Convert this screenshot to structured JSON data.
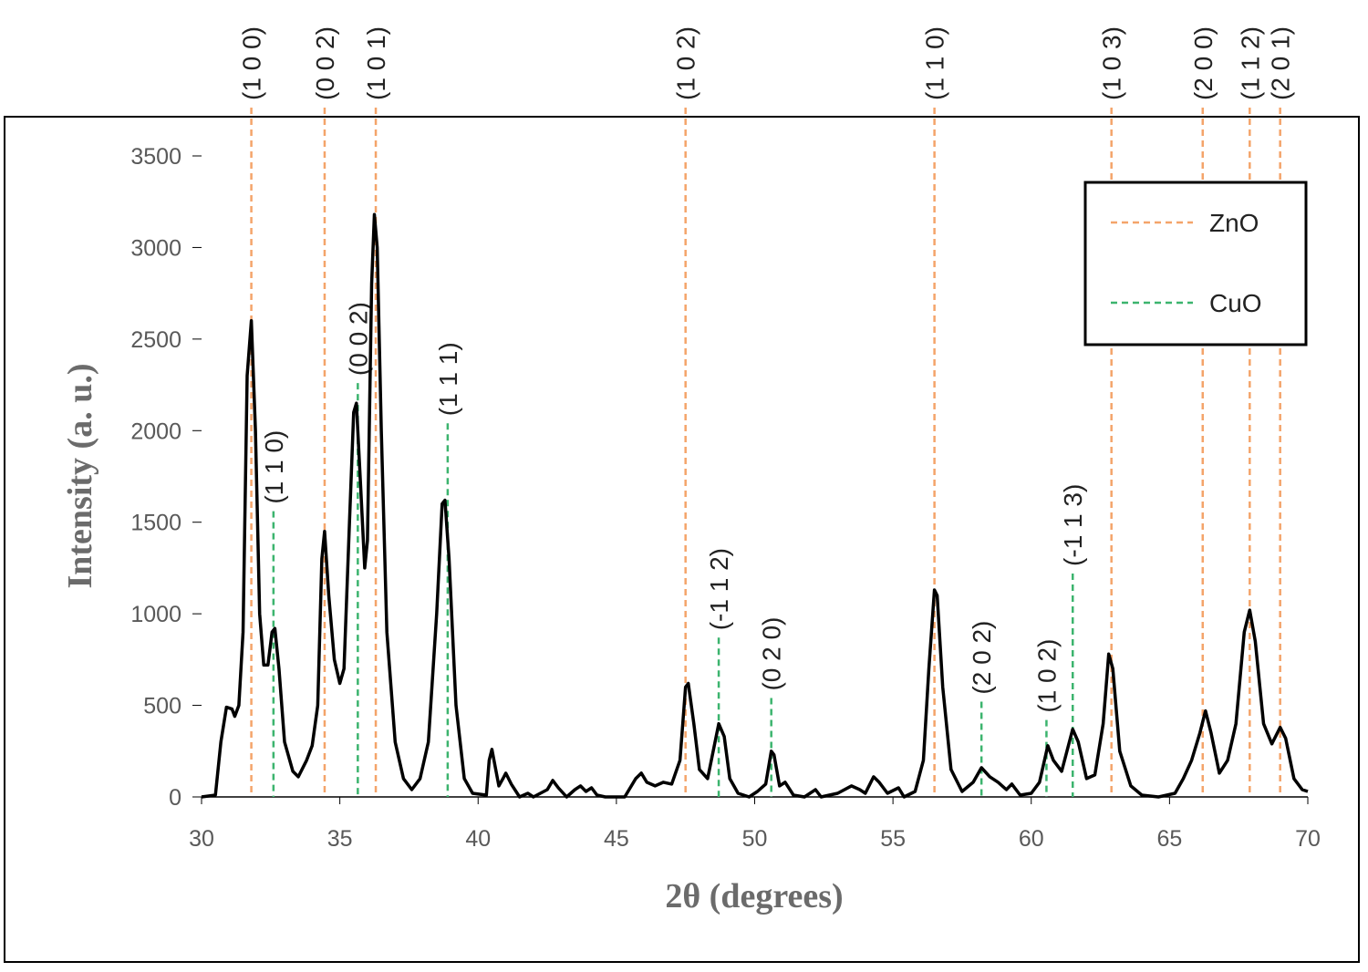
{
  "chart_data": {
    "type": "line",
    "xlabel": "2θ (degrees)",
    "ylabel": "Intensity (a. u.)",
    "xlim": [
      30,
      70
    ],
    "xticks": [
      30,
      35,
      40,
      45,
      50,
      55,
      60,
      65,
      70
    ],
    "ylim": [
      0,
      3500
    ],
    "yticks": [
      0,
      500,
      1000,
      1500,
      2000,
      2500,
      3000,
      3500
    ],
    "x": [
      30.0,
      30.5,
      30.7,
      30.9,
      31.1,
      31.2,
      31.35,
      31.5,
      31.65,
      31.8,
      31.95,
      32.1,
      32.25,
      32.4,
      32.55,
      32.65,
      32.8,
      33.0,
      33.3,
      33.5,
      33.8,
      34.0,
      34.2,
      34.35,
      34.45,
      34.6,
      34.8,
      35.0,
      35.15,
      35.35,
      35.5,
      35.6,
      35.75,
      35.9,
      36.0,
      36.15,
      36.25,
      36.35,
      36.5,
      36.7,
      37.0,
      37.3,
      37.6,
      37.9,
      38.2,
      38.5,
      38.7,
      38.8,
      38.95,
      39.2,
      39.5,
      39.8,
      40.3,
      40.4,
      40.5,
      40.6,
      40.75,
      40.9,
      41.0,
      41.2,
      41.5,
      41.8,
      42.0,
      42.5,
      42.7,
      42.9,
      43.2,
      43.5,
      43.7,
      43.9,
      44.1,
      44.3,
      44.6,
      45.3,
      45.7,
      45.9,
      46.1,
      46.4,
      46.7,
      47.0,
      47.3,
      47.5,
      47.6,
      47.8,
      48.0,
      48.3,
      48.5,
      48.7,
      48.9,
      49.1,
      49.4,
      49.8,
      50.1,
      50.4,
      50.6,
      50.7,
      50.9,
      51.1,
      51.4,
      51.8,
      52.2,
      52.4,
      53.0,
      53.5,
      53.8,
      54.0,
      54.3,
      54.5,
      54.8,
      55.2,
      55.4,
      55.8,
      56.1,
      56.3,
      56.5,
      56.6,
      56.8,
      57.1,
      57.5,
      57.9,
      58.2,
      58.5,
      58.8,
      59.1,
      59.3,
      59.6,
      60.0,
      60.3,
      60.6,
      60.8,
      61.1,
      61.5,
      61.7,
      62.0,
      62.3,
      62.6,
      62.8,
      62.95,
      63.2,
      63.6,
      64.0,
      64.6,
      65.2,
      65.5,
      65.8,
      66.1,
      66.3,
      66.5,
      66.8,
      67.1,
      67.4,
      67.7,
      67.9,
      68.1,
      68.4,
      68.7,
      69.0,
      69.2,
      69.5,
      69.8,
      70.0
    ],
    "series": [
      {
        "color": "#000000",
        "values": [
          0,
          10,
          300,
          490,
          480,
          440,
          500,
          900,
          2300,
          2600,
          2000,
          1000,
          720,
          720,
          900,
          920,
          700,
          300,
          140,
          110,
          200,
          280,
          500,
          1300,
          1450,
          1100,
          750,
          620,
          700,
          1500,
          2100,
          2150,
          1700,
          1250,
          1400,
          2800,
          3180,
          3000,
          2000,
          900,
          300,
          100,
          40,
          100,
          300,
          1000,
          1600,
          1620,
          1300,
          500,
          100,
          20,
          10,
          200,
          260,
          180,
          60,
          100,
          130,
          70,
          0,
          20,
          0,
          40,
          90,
          50,
          0,
          40,
          60,
          30,
          50,
          10,
          0,
          0,
          100,
          130,
          80,
          60,
          80,
          70,
          200,
          600,
          620,
          400,
          150,
          100,
          250,
          400,
          330,
          100,
          20,
          0,
          30,
          70,
          250,
          230,
          60,
          80,
          10,
          0,
          40,
          0,
          20,
          60,
          40,
          20,
          110,
          80,
          20,
          50,
          0,
          30,
          200,
          700,
          1130,
          1100,
          600,
          150,
          30,
          80,
          160,
          110,
          80,
          40,
          70,
          10,
          20,
          80,
          280,
          200,
          140,
          370,
          300,
          100,
          120,
          400,
          780,
          700,
          250,
          60,
          10,
          0,
          20,
          100,
          200,
          350,
          470,
          350,
          130,
          200,
          400,
          900,
          1020,
          850,
          400,
          290,
          380,
          320,
          100,
          40,
          30
        ]
      }
    ],
    "references": [
      {
        "name": "ZnO",
        "color": "#f4a46a",
        "lines": [
          {
            "position": 31.8,
            "label": "(1 0 0)"
          },
          {
            "position": 34.45,
            "label": "(0 0 2)"
          },
          {
            "position": 36.3,
            "label": "(1 0 1)"
          },
          {
            "position": 47.5,
            "label": "(1 0 2)"
          },
          {
            "position": 56.5,
            "label": "(1 1 0)"
          },
          {
            "position": 62.9,
            "label": "(1 0 3)"
          },
          {
            "position": 66.2,
            "label": "(2 0 0)"
          },
          {
            "position": 67.9,
            "label": "(1 1 2)"
          },
          {
            "position": 69.0,
            "label": "(2 0 1)"
          }
        ]
      },
      {
        "name": "CuO",
        "color": "#3cb46e",
        "lines": [
          {
            "position": 32.6,
            "ymax": 1560,
            "label": "(1 1 0)"
          },
          {
            "position": 35.65,
            "ymax": 2260,
            "label": "(0 0 2)"
          },
          {
            "position": 38.9,
            "ymax": 2040,
            "label": "(1 1 1)"
          },
          {
            "position": 48.7,
            "ymax": 870,
            "label": "(-1 1 2)"
          },
          {
            "position": 50.6,
            "ymax": 540,
            "label": "(0 2 0)"
          },
          {
            "position": 58.2,
            "ymax": 520,
            "label": "(2 0 2)"
          },
          {
            "position": 60.55,
            "ymax": 420,
            "label": "(1 0 2)"
          },
          {
            "position": 61.5,
            "ymax": 1220,
            "label": "(-1 1 3)"
          }
        ]
      }
    ],
    "legend": "upper right"
  }
}
